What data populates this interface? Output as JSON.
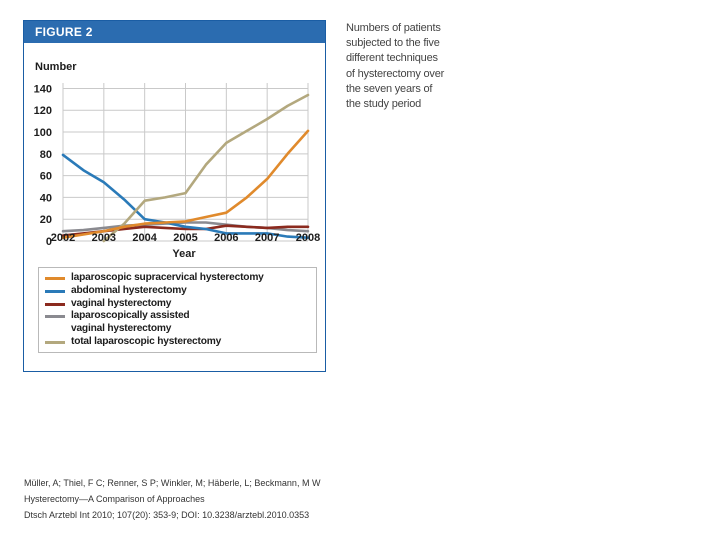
{
  "figure": {
    "title": "FIGURE 2",
    "caption": "Numbers of patients subjected to the five different techniques of hysterectomy over the seven years of the study period"
  },
  "chart_data": {
    "type": "line",
    "title": "",
    "ylabel": "Number",
    "xlabel": "Year",
    "x": [
      2002,
      2003,
      2004,
      2005,
      2006,
      2007,
      2008
    ],
    "yticks": [
      0,
      20,
      40,
      60,
      80,
      100,
      120,
      140
    ],
    "ylim": [
      0,
      145
    ],
    "grid": true,
    "series": [
      {
        "name": "laparoscopic supracervical hysterectomy",
        "color": "#e08a2c",
        "points": [
          [
            2002,
            3
          ],
          [
            2002.5,
            6
          ],
          [
            2003,
            9
          ],
          [
            2003.5,
            13
          ],
          [
            2004,
            16
          ],
          [
            2004.5,
            17
          ],
          [
            2005,
            18
          ],
          [
            2005.5,
            22
          ],
          [
            2006,
            26
          ],
          [
            2006.5,
            40
          ],
          [
            2007,
            57
          ],
          [
            2007.5,
            80
          ],
          [
            2008,
            101
          ]
        ]
      },
      {
        "name": "abdominal hysterectomy",
        "color": "#2a7ab8",
        "points": [
          [
            2002,
            79
          ],
          [
            2002.5,
            65
          ],
          [
            2003,
            54
          ],
          [
            2003.5,
            38
          ],
          [
            2004,
            20
          ],
          [
            2004.5,
            17
          ],
          [
            2005,
            13
          ],
          [
            2005.5,
            11
          ],
          [
            2006,
            7
          ],
          [
            2006.5,
            7
          ],
          [
            2007,
            7
          ],
          [
            2007.5,
            4
          ],
          [
            2008,
            3
          ]
        ]
      },
      {
        "name": "vaginal hysterectomy",
        "color": "#8b2a1e",
        "points": [
          [
            2002,
            5
          ],
          [
            2002.5,
            7
          ],
          [
            2003,
            9
          ],
          [
            2003.5,
            11
          ],
          [
            2004,
            13
          ],
          [
            2004.5,
            12
          ],
          [
            2005,
            11
          ],
          [
            2005.5,
            11
          ],
          [
            2006,
            14
          ],
          [
            2006.5,
            13
          ],
          [
            2007,
            12
          ],
          [
            2007.5,
            13
          ],
          [
            2008,
            13
          ]
        ]
      },
      {
        "name": "laparoscopically assisted vaginal hysterectomy",
        "color": "#8a8a90",
        "points": [
          [
            2002,
            9
          ],
          [
            2002.5,
            10
          ],
          [
            2003,
            12
          ],
          [
            2003.5,
            14
          ],
          [
            2004,
            15
          ],
          [
            2004.5,
            16
          ],
          [
            2005,
            17
          ],
          [
            2005.5,
            17
          ],
          [
            2006,
            15
          ],
          [
            2006.5,
            13
          ],
          [
            2007,
            12
          ],
          [
            2007.5,
            10
          ],
          [
            2008,
            9
          ]
        ]
      },
      {
        "name": "total laparoscopic hysterectomy",
        "color": "#b3a87e",
        "points": [
          [
            2003,
            0
          ],
          [
            2003.5,
            16
          ],
          [
            2004,
            37
          ],
          [
            2004.5,
            40
          ],
          [
            2005,
            44
          ],
          [
            2005.5,
            70
          ],
          [
            2006,
            90
          ],
          [
            2006.5,
            101
          ],
          [
            2007,
            112
          ],
          [
            2007.5,
            124
          ],
          [
            2008,
            134
          ]
        ]
      }
    ]
  },
  "legend": {
    "items": [
      {
        "label": "laparoscopic supracervical hysterectomy",
        "color": "#e08a2c"
      },
      {
        "label": "abdominal hysterectomy",
        "color": "#2a7ab8"
      },
      {
        "label": "vaginal hysterectomy",
        "color": "#8b2a1e"
      },
      {
        "label": "laparoscopically assisted",
        "color": "#8a8a90"
      },
      {
        "label": "vaginal hysterectomy",
        "color": ""
      },
      {
        "label": "total laparoscopic hysterectomy",
        "color": "#b3a87e"
      }
    ]
  },
  "citation": {
    "line1": "Müller, A; Thiel, F C; Renner, S P; Winkler, M; Häberle, L; Beckmann, M W",
    "line2": "Hysterectomy—A Comparison of Approaches",
    "line3": "Dtsch Arztebl Int 2010; 107(20): 353-9; DOI: 10.3238/arztebl.2010.0353"
  }
}
